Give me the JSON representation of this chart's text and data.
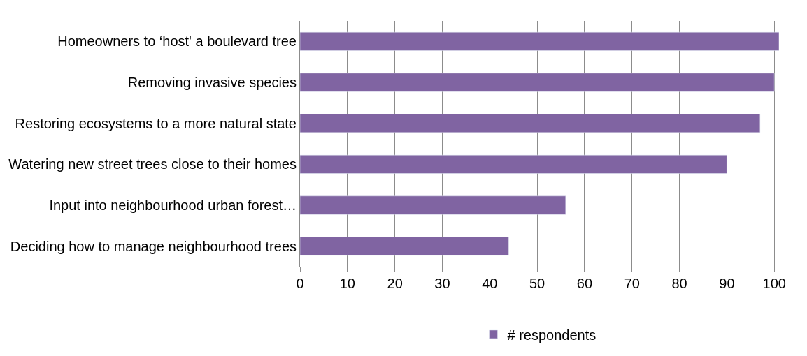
{
  "chart_data": {
    "type": "bar",
    "orientation": "horizontal",
    "categories": [
      "Homeowners to ‘host' a boulevard tree",
      "Removing invasive species",
      "Restoring ecosystems to a more natural state",
      "Watering new street trees close to their homes",
      "Input into neighbourhood urban forest…",
      "Deciding how to manage neighbourhood trees"
    ],
    "series": [
      {
        "name": "# respondents",
        "color": "#8064a2",
        "values": [
          101,
          100,
          97,
          90,
          56,
          44
        ]
      }
    ],
    "xlim": [
      0,
      101
    ],
    "xticks": [
      0,
      10,
      20,
      30,
      40,
      50,
      60,
      70,
      80,
      90,
      100
    ],
    "grid": "x",
    "legend": "bottom"
  }
}
